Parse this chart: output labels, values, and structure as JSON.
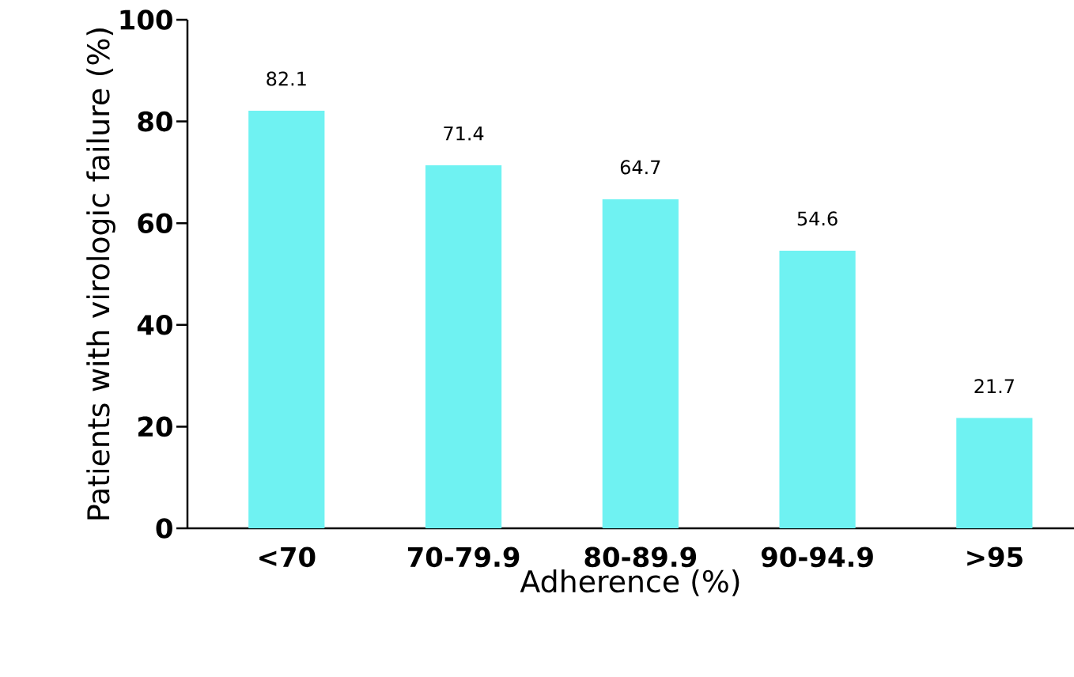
{
  "chart_data": {
    "type": "bar",
    "xlabel": "Adherence (%)",
    "ylabel": "Patients with virologic failure (%)",
    "categories": [
      "<70",
      "70-79.9",
      "80-89.9",
      "90-94.9",
      ">95"
    ],
    "values": [
      82.1,
      71.4,
      64.7,
      54.6,
      21.7
    ],
    "color": "#6ff2f2",
    "ylim": [
      0,
      100
    ],
    "yticks": [
      0,
      20,
      40,
      60,
      80,
      100
    ],
    "data_labels": true
  }
}
